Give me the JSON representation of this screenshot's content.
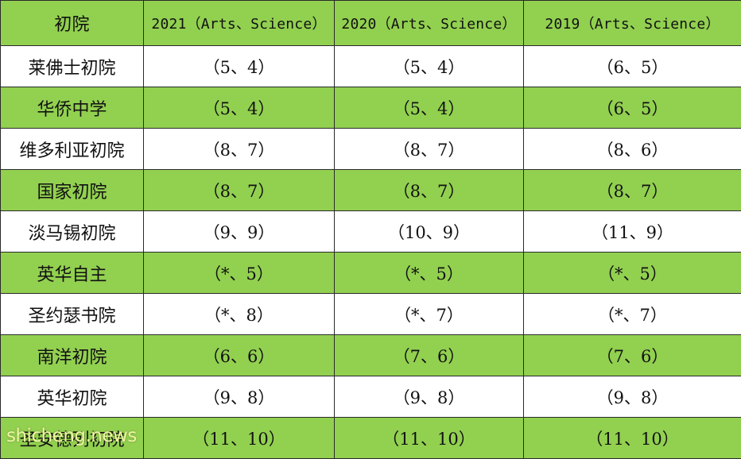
{
  "header": [
    "初院",
    "2021（Arts、Science）",
    "2020（Arts、Science）",
    "2019（Arts、Science）"
  ],
  "rows": [
    [
      "莱佛士初院",
      "（5、4）",
      "（5、4）",
      "（6、5）"
    ],
    [
      "华侨中学",
      "（5、4）",
      "（5、4）",
      "（6、5）"
    ],
    [
      "维多利亚初院",
      "（8、7）",
      "（8、7）",
      "（8、6）"
    ],
    [
      "国家初院",
      "（8、7）",
      "（8、7）",
      "（8、7）"
    ],
    [
      "淡马锡初院",
      "（9、9）",
      "（10、9）",
      "（11、9）"
    ],
    [
      "英华自主",
      "（*、5）",
      "（*、5）",
      "（*、5）"
    ],
    [
      "圣约瑟书院",
      "（*、8）",
      "（*、7）",
      "（*、7）"
    ],
    [
      "南洋初院",
      "（6、6）",
      "（7、6）",
      "（7、6）"
    ],
    [
      "英华初院",
      "（9、8）",
      "（9、8）",
      "（9、8）"
    ],
    [
      "圣安德列初院",
      "（11、10）",
      "（11、10）",
      "（11、10）"
    ]
  ],
  "watermark": "shicheng.news",
  "colors": {
    "green_row": "#92d050",
    "white_row": "#ffffff",
    "border": "#2a2a2a"
  }
}
